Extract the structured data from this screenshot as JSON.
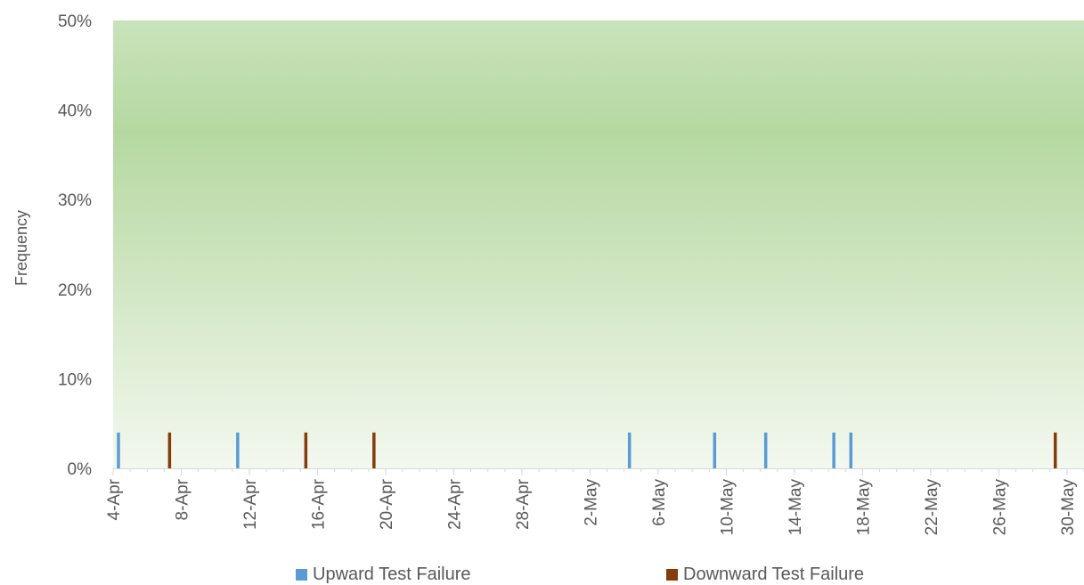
{
  "chart_data": {
    "type": "bar",
    "title": "",
    "ylabel": "Frequency",
    "xlabel": "",
    "ylim": [
      0,
      0.5
    ],
    "yticks": [
      0,
      0.1,
      0.2,
      0.3,
      0.4,
      0.5
    ],
    "yticklabels": [
      "0%",
      "10%",
      "20%",
      "30%",
      "40%",
      "50%"
    ],
    "xlim": [
      "2020-04-04",
      "2020-05-31"
    ],
    "xticks": [
      "2020-04-04",
      "2020-04-08",
      "2020-04-12",
      "2020-04-16",
      "2020-04-20",
      "2020-04-24",
      "2020-04-28",
      "2020-05-02",
      "2020-05-06",
      "2020-05-10",
      "2020-05-14",
      "2020-05-18",
      "2020-05-22",
      "2020-05-26",
      "2020-05-30"
    ],
    "xticklabels": [
      "4-Apr",
      "8-Apr",
      "12-Apr",
      "16-Apr",
      "20-Apr",
      "24-Apr",
      "28-Apr",
      "2-May",
      "6-May",
      "10-May",
      "14-May",
      "18-May",
      "22-May",
      "26-May",
      "30-May"
    ],
    "series": [
      {
        "name": "Upward Test Failure",
        "color": "#5b9bd5",
        "x": [
          "2020-04-04",
          "2020-04-11",
          "2020-05-04",
          "2020-05-09",
          "2020-05-12",
          "2020-05-16",
          "2020-05-17"
        ],
        "values": [
          0.04,
          0.04,
          0.04,
          0.04,
          0.04,
          0.04,
          0.04
        ]
      },
      {
        "name": "Downward Test Failure",
        "color": "#843c0c",
        "x": [
          "2020-04-07",
          "2020-04-15",
          "2020-04-19",
          "2020-05-29"
        ],
        "values": [
          0.04,
          0.04,
          0.04,
          0.04
        ]
      }
    ],
    "background_gradient": [
      "#c9e3bb",
      "#b5d8a0",
      "#f3f8ef"
    ],
    "legend_position": "bottom"
  }
}
